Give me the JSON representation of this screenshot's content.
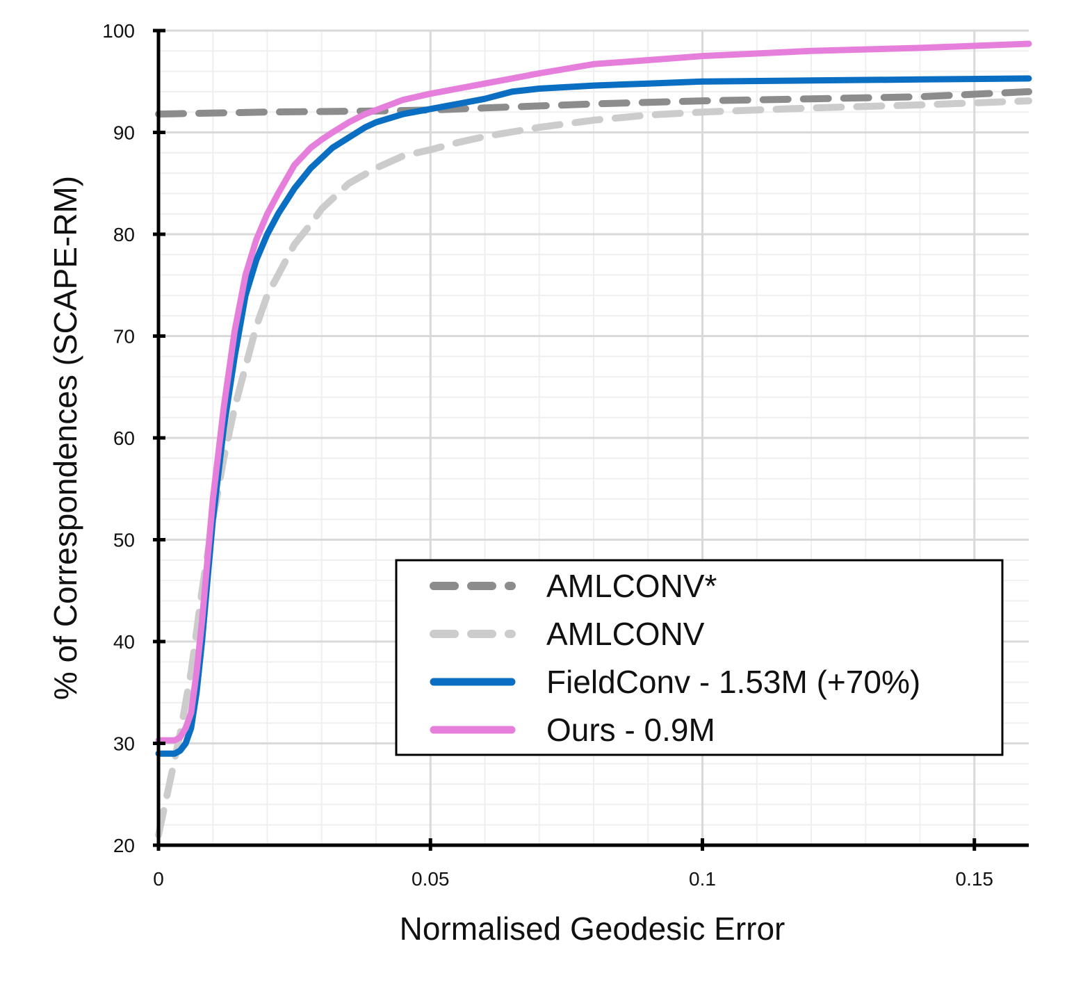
{
  "chart_data": {
    "type": "line",
    "title": "",
    "xlabel": "Normalised Geodesic Error",
    "ylabel": "% of Correspondences (SCAPE-RM)",
    "xlim": [
      0,
      0.16
    ],
    "ylim": [
      20,
      100
    ],
    "xticks": [
      0,
      0.05,
      0.1,
      0.15
    ],
    "xtick_labels": [
      "0",
      "0.05",
      "0.1",
      "0.15"
    ],
    "yticks": [
      20,
      30,
      40,
      50,
      60,
      70,
      80,
      90,
      100
    ],
    "ytick_labels": [
      "20",
      "30",
      "40",
      "50",
      "60",
      "70",
      "80",
      "90",
      "100"
    ],
    "grid": true,
    "legend_position": "lower-right",
    "series": [
      {
        "name": "AMLCONV*",
        "color": "#8c8c8c",
        "style": "dashed",
        "x": [
          0,
          0.02,
          0.04,
          0.05,
          0.06,
          0.08,
          0.1,
          0.12,
          0.14,
          0.16
        ],
        "y": [
          91.8,
          92.0,
          92.1,
          92.2,
          92.4,
          92.8,
          93.1,
          93.3,
          93.5,
          94.0
        ]
      },
      {
        "name": "AMLCONV",
        "color": "#cccccc",
        "style": "dashed",
        "x": [
          0,
          0.002,
          0.004,
          0.006,
          0.008,
          0.01,
          0.012,
          0.014,
          0.016,
          0.018,
          0.02,
          0.022,
          0.025,
          0.028,
          0.03,
          0.035,
          0.04,
          0.045,
          0.05,
          0.055,
          0.06,
          0.07,
          0.08,
          0.09,
          0.1,
          0.12,
          0.14,
          0.16
        ],
        "y": [
          21,
          26,
          31,
          37,
          45,
          52,
          58,
          63,
          67,
          71,
          74,
          76,
          79,
          81,
          82.5,
          85,
          86.5,
          87.7,
          88.3,
          89,
          89.6,
          90.5,
          91.2,
          91.7,
          92.0,
          92.4,
          92.7,
          93.1
        ]
      },
      {
        "name": "FieldConv - 1.53M (+70%)",
        "color": "#0a6fc2",
        "style": "solid",
        "x": [
          0,
          0.002,
          0.003,
          0.004,
          0.005,
          0.006,
          0.007,
          0.008,
          0.009,
          0.01,
          0.012,
          0.014,
          0.016,
          0.018,
          0.02,
          0.022,
          0.025,
          0.028,
          0.03,
          0.032,
          0.035,
          0.038,
          0.04,
          0.045,
          0.05,
          0.055,
          0.06,
          0.065,
          0.07,
          0.08,
          0.09,
          0.1,
          0.12,
          0.14,
          0.16
        ],
        "y": [
          29,
          29,
          29,
          29.3,
          30,
          31.5,
          35,
          40,
          46,
          52,
          61,
          68,
          74,
          77.5,
          80,
          82,
          84.5,
          86.5,
          87.5,
          88.5,
          89.5,
          90.5,
          91,
          91.8,
          92.3,
          92.8,
          93.3,
          94,
          94.3,
          94.6,
          94.8,
          95.0,
          95.1,
          95.2,
          95.3
        ]
      },
      {
        "name": "Ours - 0.9M",
        "color": "#e67fdc",
        "style": "solid",
        "x": [
          0,
          0.002,
          0.003,
          0.004,
          0.005,
          0.006,
          0.007,
          0.008,
          0.009,
          0.01,
          0.012,
          0.014,
          0.016,
          0.018,
          0.02,
          0.022,
          0.025,
          0.028,
          0.03,
          0.032,
          0.035,
          0.038,
          0.04,
          0.045,
          0.05,
          0.055,
          0.06,
          0.065,
          0.07,
          0.08,
          0.09,
          0.1,
          0.12,
          0.14,
          0.16
        ],
        "y": [
          30.3,
          30.3,
          30.3,
          30.6,
          31.5,
          33,
          37,
          42,
          48,
          54,
          63,
          70.5,
          76,
          79.5,
          82,
          84,
          86.8,
          88.5,
          89.3,
          90,
          91,
          91.8,
          92.2,
          93.2,
          93.8,
          94.3,
          94.8,
          95.3,
          95.8,
          96.7,
          97.1,
          97.5,
          98.0,
          98.3,
          98.7
        ]
      }
    ]
  }
}
